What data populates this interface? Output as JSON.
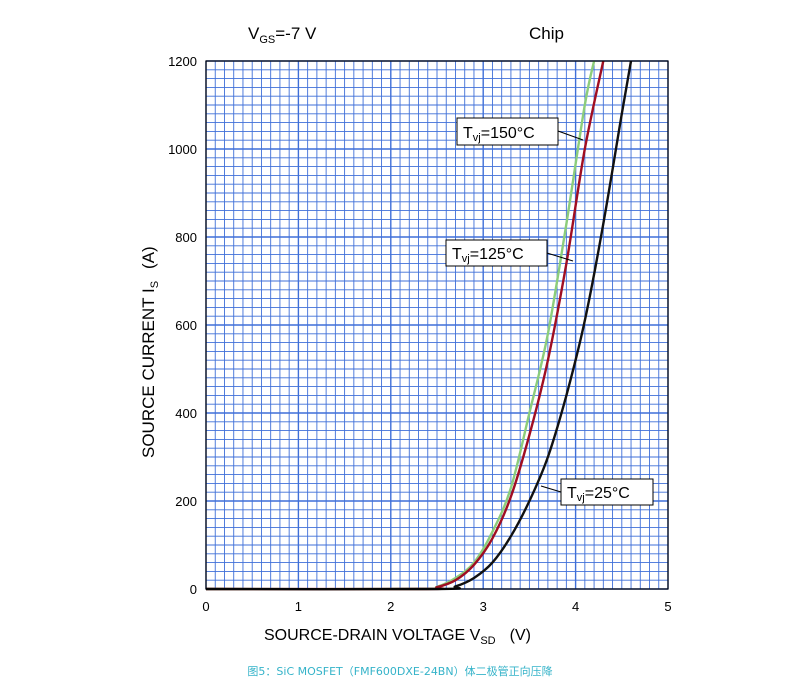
{
  "chart_data": {
    "type": "line",
    "title": "",
    "xlabel": "SOURCE-DRAIN VOLTAGE   V",
    "xlabel_sub": "SD",
    "xlabel_unit": "(V)",
    "ylabel": "SOURCE CURRENT   I",
    "ylabel_sub": "S",
    "ylabel_unit": "(A)",
    "xlim": [
      0,
      5
    ],
    "ylim": [
      0,
      1200
    ],
    "x_ticks": [
      "0",
      "1",
      "2",
      "3",
      "4",
      "5"
    ],
    "y_ticks": [
      "0",
      "200",
      "400",
      "600",
      "800",
      "1000",
      "1200"
    ],
    "grid": true,
    "condition": {
      "prefix": "V",
      "sub": "GS",
      "suffix": "=-7 V"
    },
    "panel_label": "Chip",
    "series": [
      {
        "name": "Tvj=150°C",
        "label_prefix": "T",
        "label_sub": "vj",
        "label_suffix": "=150°C",
        "color": "#8ccd7b",
        "x": [
          0,
          2.3,
          2.5,
          2.7,
          2.9,
          3.1,
          3.3,
          3.5,
          3.7,
          3.9,
          4.1,
          4.2
        ],
        "y": [
          0,
          0,
          5,
          25,
          60,
          130,
          230,
          400,
          580,
          830,
          1100,
          1200
        ]
      },
      {
        "name": "Tvj=125°C",
        "label_prefix": "T",
        "label_sub": "vj",
        "label_suffix": "=125°C",
        "color": "#a00e22",
        "x": [
          0,
          2.35,
          2.5,
          2.7,
          2.9,
          3.1,
          3.3,
          3.5,
          3.7,
          3.9,
          4.1,
          4.3
        ],
        "y": [
          0,
          0,
          4,
          20,
          55,
          115,
          210,
          350,
          520,
          740,
          1000,
          1200
        ]
      },
      {
        "name": "Tvj=25°C",
        "label_prefix": "T",
        "label_sub": "vj",
        "label_suffix": "=25°C",
        "color": "#111111",
        "x": [
          0,
          2.5,
          2.7,
          2.9,
          3.1,
          3.3,
          3.5,
          3.7,
          3.9,
          4.1,
          4.3,
          4.5,
          4.6
        ],
        "y": [
          0,
          0,
          6,
          25,
          60,
          120,
          200,
          300,
          440,
          610,
          830,
          1080,
          1200
        ]
      }
    ]
  },
  "caption": "图5：SiC MOSFET（FMF600DXE-24BN）体二极管正向压降"
}
